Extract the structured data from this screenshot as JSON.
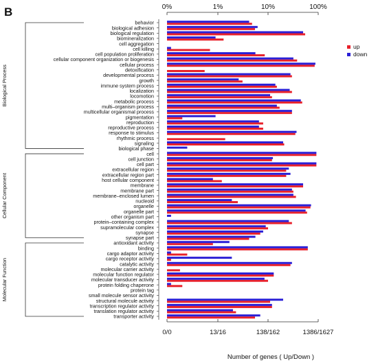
{
  "panel_label": "B",
  "chart_data": {
    "type": "bar",
    "orientation": "horizontal",
    "scale": "log",
    "top_ticks": [
      "0%",
      "1%",
      "10%",
      "100%"
    ],
    "bottom_ticks": [
      "0/0",
      "13/16",
      "138/162",
      "1386/1627"
    ],
    "xlabel": "Number of genes ( Up/Down )",
    "legend": {
      "position": "top-right",
      "items": [
        {
          "name": "up",
          "color": "#e8202a"
        },
        {
          "name": "down",
          "color": "#2a1fd6"
        }
      ]
    },
    "categories": [
      "behavior",
      "biological adhesion",
      "biological regulation",
      "biomineralization",
      "cell aggregation",
      "cell killing",
      "cell population proliferation",
      "cellular component organization or biogenesis",
      "cellular process",
      "detoxification",
      "developmental process",
      "growth",
      "immune system process",
      "localization",
      "locomotion",
      "metabolic process",
      "multi–organism process",
      "multicellular organismal process",
      "pigmentation",
      "reproduction",
      "reproductive process",
      "response to stimulus",
      "rhythmic process",
      "signaling",
      "biological phase",
      "cell",
      "cell junction",
      "cell part",
      "extracellular region",
      "extracellular region part",
      "host cellular component",
      "membrane",
      "membrane part",
      "membrane–enclosed lumen",
      "nucleoid",
      "organelle",
      "organelle part",
      "other organism part",
      "protein–containing complex",
      "supramolecular complex",
      "synapse",
      "synapse part",
      "antioxidant activity",
      "binding",
      "cargo adaptor activity",
      "cargo receptor activity",
      "catalytic activity",
      "molecular carrier activity",
      "molecular function regulator",
      "molecular transducer activity",
      "protein folding chaperone",
      "protein tag",
      "small molecule sensor activity",
      "structural molecule activity",
      "transcription regulator activity",
      "translation regulator activity",
      "transporter activity"
    ],
    "series": [
      {
        "name": "up",
        "color": "#e8202a",
        "values": [
          4.8,
          5.5,
          55,
          1.3,
          0,
          0.7,
          8.6,
          38,
          85,
          0.55,
          30,
          3.1,
          15,
          30,
          12,
          48,
          17,
          30,
          0.2,
          8,
          8,
          35,
          1.4,
          21,
          0,
          92,
          12,
          92,
          23,
          23,
          1.2,
          50,
          32,
          36,
          2.5,
          70,
          60,
          0,
          30,
          10,
          7,
          4.2,
          0.8,
          62,
          0.25,
          0.12,
          28,
          0.18,
          13,
          10,
          0.2,
          0,
          0,
          11,
          12,
          2.3,
          5.5
        ]
      },
      {
        "name": "down",
        "color": "#2a1fd6",
        "values": [
          4.2,
          6.2,
          50,
          0.9,
          0,
          0.12,
          5.6,
          32,
          88,
          0,
          28,
          2.6,
          14,
          27,
          11,
          45,
          15,
          30,
          0.9,
          6.6,
          6.6,
          37,
          0,
          20,
          0.25,
          92,
          12.5,
          92,
          26,
          28,
          0.8,
          50,
          30,
          32,
          1.9,
          72,
          56,
          0.12,
          26,
          9,
          8,
          5.6,
          1.7,
          62,
          0.12,
          1.9,
          30,
          0,
          13,
          8.5,
          0.12,
          0,
          0,
          20,
          12,
          2,
          7
        ]
      }
    ],
    "groups": [
      {
        "label": "Biological Process",
        "start": 0,
        "end": 24
      },
      {
        "label": "Cellular Component",
        "start": 25,
        "end": 41
      },
      {
        "label": "Molecular Function",
        "start": 42,
        "end": 56
      }
    ]
  }
}
